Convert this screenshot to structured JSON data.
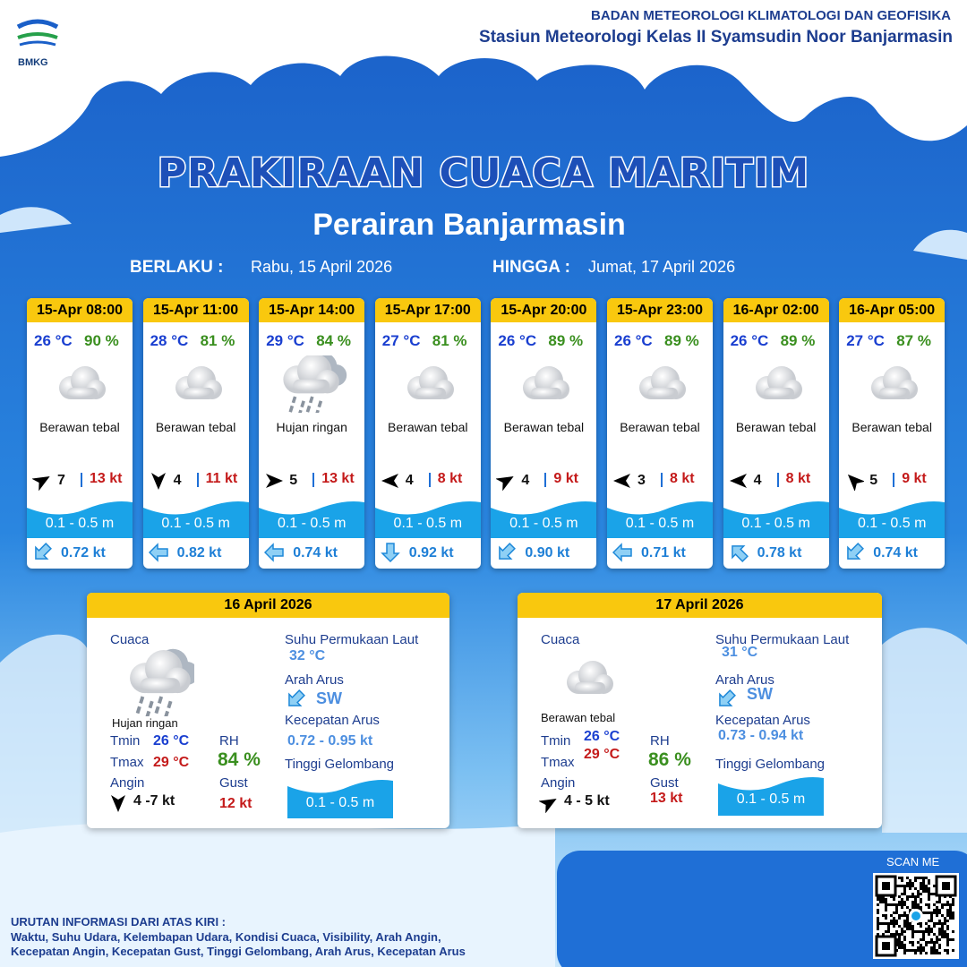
{
  "header": {
    "logo": "BMKG",
    "agency": "BADAN METEOROLOGI KLIMATOLOGI DAN GEOFISIKA",
    "station": "Stasiun Meteorologi Kelas II Syamsudin Noor Banjarmasin"
  },
  "title": "PRAKIRAAN CUACA MARITIM",
  "subtitle": "Perairan Banjarmasin",
  "validity": {
    "from_label": "BERLAKU :",
    "from": "Rabu, 15 April 2026",
    "to_label": "HINGGA :",
    "to": "Jumat, 17 April 2026"
  },
  "forecasts": [
    {
      "time": "15-Apr 08:00",
      "temp": "26 °C",
      "rh": "90 %",
      "weather": "Berawan tebal",
      "wind": "7",
      "gust": "13 kt",
      "wave": "0.1 - 0.5 m",
      "current": "0.72 kt"
    },
    {
      "time": "15-Apr 11:00",
      "temp": "28 °C",
      "rh": "81 %",
      "weather": "Berawan tebal",
      "wind": "4",
      "gust": "11 kt",
      "wave": "0.1 - 0.5 m",
      "current": "0.82 kt"
    },
    {
      "time": "15-Apr 14:00",
      "temp": "29 °C",
      "rh": "84 %",
      "weather": "Hujan ringan",
      "wind": "5",
      "gust": "13 kt",
      "wave": "0.1 - 0.5 m",
      "current": "0.74 kt"
    },
    {
      "time": "15-Apr 17:00",
      "temp": "27 °C",
      "rh": "81 %",
      "weather": "Berawan tebal",
      "wind": "4",
      "gust": "8 kt",
      "wave": "0.1 - 0.5 m",
      "current": "0.92 kt"
    },
    {
      "time": "15-Apr 20:00",
      "temp": "26 °C",
      "rh": "89 %",
      "weather": "Berawan tebal",
      "wind": "4",
      "gust": "9 kt",
      "wave": "0.1 - 0.5 m",
      "current": "0.90 kt"
    },
    {
      "time": "15-Apr 23:00",
      "temp": "26 °C",
      "rh": "89 %",
      "weather": "Berawan tebal",
      "wind": "3",
      "gust": "8 kt",
      "wave": "0.1 - 0.5 m",
      "current": "0.71 kt"
    },
    {
      "time": "16-Apr 02:00",
      "temp": "26 °C",
      "rh": "89 %",
      "weather": "Berawan tebal",
      "wind": "4",
      "gust": "8 kt",
      "wave": "0.1 - 0.5 m",
      "current": "0.78 kt"
    },
    {
      "time": "16-Apr 05:00",
      "temp": "27 °C",
      "rh": "87 %",
      "weather": "Berawan tebal",
      "wind": "5",
      "gust": "9 kt",
      "wave": "0.1 - 0.5 m",
      "current": "0.74 kt"
    }
  ],
  "panel_labels": {
    "weather": "Cuaca",
    "tmin": "Tmin",
    "tmax": "Tmax",
    "wind": "Angin",
    "rh": "RH",
    "gust": "Gust",
    "sst": "Suhu Permukaan Laut",
    "current_dir": "Arah Arus",
    "current_speed": "Kecepatan Arus",
    "wave": "Tinggi Gelombang"
  },
  "panels": [
    {
      "date": "16 April 2026",
      "weather": "Hujan ringan",
      "tmin": "26 °C",
      "tmax": "29 °C",
      "wind": "4  -7 kt",
      "rh": "84 %",
      "gust": "12 kt",
      "sst": "32 °C",
      "current_dir": "SW",
      "current_speed": "0.72  - 0.95 kt",
      "wave": "0.1 - 0.5 m"
    },
    {
      "date": "17 April 2026",
      "weather": "Berawan tebal",
      "tmin": "26 °C",
      "tmax": "29 °C",
      "wind": "4  - 5 kt",
      "rh": "86 %",
      "gust": "13 kt",
      "sst": "31 °C",
      "current_dir": "SW",
      "current_speed": "0.73  - 0.94 kt",
      "wave": "0.1 - 0.5 m"
    }
  ],
  "footer": {
    "scan": "SCAN ME",
    "info_title": "URUTAN INFORMASI DARI ATAS KIRI :",
    "info_lines": [
      "Waktu, Suhu Udara, Kelembapan Udara, Kondisi Cuaca, Visibility, Arah Angin,",
      "Kecepatan Angin, Kecepatan Gust, Tinggi Gelombang, Arah Arus, Kecepatan Arus"
    ]
  }
}
